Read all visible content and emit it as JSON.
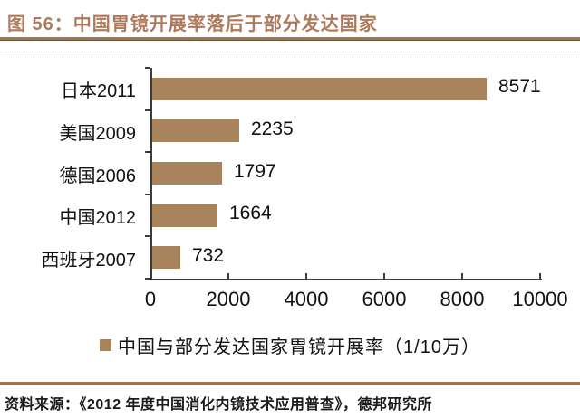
{
  "header": {
    "title": "图 56：中国胃镜开展率落后于部分发达国家"
  },
  "chart_data": {
    "type": "bar",
    "orientation": "horizontal",
    "categories": [
      "日本2011",
      "美国2009",
      "德国2006",
      "中国2012",
      "西班牙2007"
    ],
    "values": [
      8571,
      2235,
      1797,
      1664,
      732
    ],
    "xlim": [
      0,
      10000
    ],
    "x_ticks": [
      0,
      2000,
      4000,
      6000,
      8000,
      10000
    ],
    "legend": "中国与部分发达国家胃镜开展率（1/10万）",
    "legend_position": "bottom",
    "value_labels": true,
    "grid": false,
    "bar_color": "#A8845C"
  },
  "footer": {
    "source": "资料来源：《2012 年度中国消化内镜技术应用普查》，德邦研究所"
  },
  "colors": {
    "title_accent": "#AE7A5C",
    "rule": "#9C7850",
    "axis": "#3C3C3C",
    "bar": "#A8845C"
  }
}
